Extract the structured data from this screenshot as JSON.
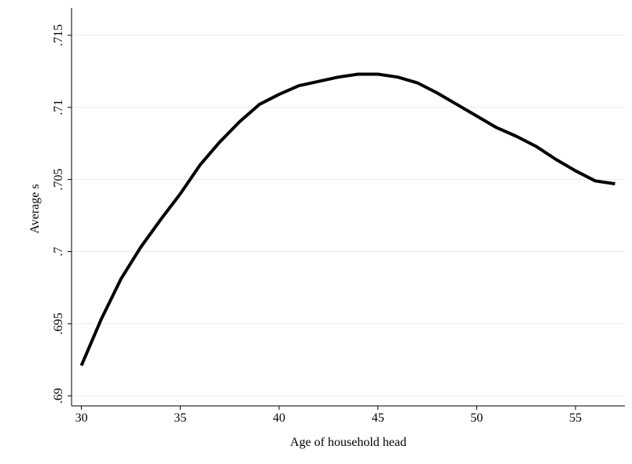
{
  "chart_data": {
    "type": "line",
    "x_label": "Age of household head",
    "y_label": "Average s",
    "x": [
      30,
      31,
      32,
      33,
      34,
      35,
      36,
      37,
      38,
      39,
      40,
      41,
      42,
      43,
      44,
      45,
      46,
      47,
      48,
      49,
      50,
      51,
      52,
      53,
      54,
      55,
      56,
      57
    ],
    "series": [
      {
        "color": "#000000",
        "values": [
          0.6921,
          0.6953,
          0.6981,
          0.7003,
          0.7022,
          0.704,
          0.706,
          0.7076,
          0.709,
          0.7102,
          0.7109,
          0.7115,
          0.7118,
          0.7121,
          0.7123,
          0.7123,
          0.7121,
          0.7117,
          0.711,
          0.7102,
          0.7094,
          0.7086,
          0.708,
          0.7073,
          0.7064,
          0.7056,
          0.7049,
          0.7047
        ]
      }
    ],
    "xlim": [
      29.5,
      57.5
    ],
    "ylim": [
      0.6893,
      0.7169
    ],
    "xticks": [
      30,
      35,
      40,
      45,
      50,
      55
    ],
    "yticks": [
      {
        "value": 0.69,
        "label": ".69"
      },
      {
        "value": 0.695,
        "label": ".695"
      },
      {
        "value": 0.7,
        "label": ".7"
      },
      {
        "value": 0.705,
        "label": ".705"
      },
      {
        "value": 0.71,
        "label": ".71"
      },
      {
        "value": 0.715,
        "label": ".715"
      }
    ],
    "grid": true
  }
}
